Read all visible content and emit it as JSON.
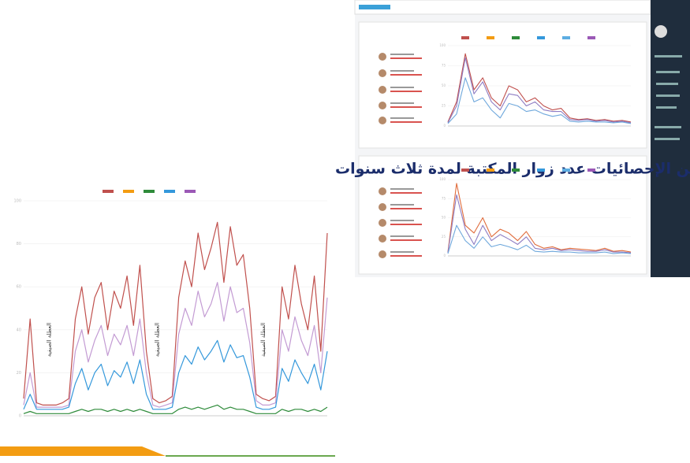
{
  "slide": {
    "title": "مثال عن الإحصائيات عدد زوار المكتبة لمدة ثلاث سنوات"
  },
  "chart_data": [
    {
      "type": "line",
      "ylim": [
        0,
        100
      ],
      "yticks": [
        0,
        20,
        40,
        60,
        80,
        100
      ],
      "grid": true,
      "legend_colors": [
        "#c0504d",
        "#f39c12",
        "#2e8b3a",
        "#3498db",
        "#9b59b6"
      ],
      "annotations": [
        "العطلة الصيفية",
        "العطلة الصيفية",
        "العطلة الصيفية"
      ],
      "series": [
        {
          "color": "#c0504d",
          "values": [
            8,
            45,
            6,
            5,
            5,
            5,
            6,
            8,
            45,
            60,
            38,
            55,
            62,
            40,
            58,
            50,
            65,
            42,
            70,
            30,
            8,
            6,
            7,
            9,
            55,
            72,
            60,
            85,
            68,
            78,
            90,
            62,
            88,
            70,
            75,
            50,
            10,
            8,
            7,
            9,
            60,
            45,
            70,
            52,
            40,
            65,
            30,
            85
          ]
        },
        {
          "color": "#c39bd3",
          "values": [
            5,
            20,
            4,
            4,
            4,
            4,
            4,
            5,
            30,
            40,
            25,
            35,
            42,
            28,
            38,
            33,
            42,
            28,
            45,
            20,
            5,
            4,
            5,
            6,
            38,
            50,
            42,
            58,
            46,
            52,
            62,
            44,
            60,
            48,
            50,
            34,
            7,
            5,
            5,
            6,
            40,
            30,
            46,
            35,
            28,
            42,
            20,
            55
          ]
        },
        {
          "color": "#3498db",
          "values": [
            3,
            10,
            3,
            3,
            3,
            3,
            3,
            4,
            15,
            22,
            12,
            20,
            24,
            14,
            21,
            18,
            25,
            15,
            26,
            10,
            3,
            3,
            3,
            4,
            20,
            28,
            24,
            32,
            26,
            30,
            35,
            25,
            33,
            27,
            28,
            18,
            4,
            3,
            3,
            4,
            22,
            16,
            26,
            20,
            15,
            24,
            12,
            30
          ]
        },
        {
          "color": "#2e8b3a",
          "values": [
            1,
            2,
            1,
            1,
            1,
            1,
            1,
            1,
            2,
            3,
            2,
            3,
            3,
            2,
            3,
            2,
            3,
            2,
            3,
            2,
            1,
            1,
            1,
            1,
            3,
            4,
            3,
            4,
            3,
            4,
            5,
            3,
            4,
            3,
            3,
            2,
            1,
            1,
            1,
            1,
            3,
            2,
            3,
            3,
            2,
            3,
            2,
            4
          ]
        }
      ]
    },
    {
      "type": "line",
      "ylim": [
        0,
        100
      ],
      "yticks": [
        0,
        25,
        50,
        75,
        100
      ],
      "grid": true,
      "legend_colors": [
        "#c0504d",
        "#f39c12",
        "#2e8b3a",
        "#3498db",
        "#5dade2",
        "#9b59b6"
      ],
      "series": [
        {
          "color": "#c0504d",
          "values": [
            5,
            30,
            90,
            45,
            60,
            35,
            25,
            50,
            45,
            30,
            35,
            25,
            20,
            22,
            10,
            8,
            9,
            7,
            8,
            6,
            7,
            5
          ]
        },
        {
          "color": "#8e7cc3",
          "values": [
            4,
            25,
            85,
            40,
            55,
            30,
            20,
            40,
            38,
            25,
            30,
            20,
            18,
            18,
            8,
            7,
            8,
            6,
            7,
            5,
            6,
            4
          ]
        },
        {
          "color": "#6fa8dc",
          "values": [
            3,
            15,
            60,
            30,
            35,
            20,
            10,
            28,
            25,
            18,
            20,
            15,
            12,
            14,
            6,
            5,
            6,
            5,
            5,
            4,
            5,
            3
          ]
        }
      ]
    },
    {
      "type": "line",
      "ylim": [
        0,
        100
      ],
      "yticks": [
        0,
        25,
        50,
        75,
        100
      ],
      "grid": true,
      "legend_colors": [
        "#c0504d",
        "#f39c12",
        "#2e8b3a",
        "#3498db",
        "#5dade2",
        "#9b59b6"
      ],
      "series": [
        {
          "color": "#e06c3c",
          "values": [
            5,
            95,
            40,
            30,
            50,
            25,
            35,
            30,
            20,
            32,
            15,
            10,
            12,
            8,
            10,
            9,
            8,
            7,
            10,
            6,
            7,
            5
          ]
        },
        {
          "color": "#8e7cc3",
          "values": [
            4,
            80,
            35,
            15,
            40,
            20,
            28,
            22,
            15,
            25,
            10,
            8,
            10,
            7,
            8,
            7,
            6,
            6,
            8,
            5,
            5,
            4
          ]
        },
        {
          "color": "#6fa8dc",
          "values": [
            3,
            40,
            20,
            10,
            25,
            12,
            15,
            12,
            8,
            14,
            6,
            5,
            6,
            5,
            5,
            4,
            4,
            4,
            5,
            3,
            4,
            3
          ]
        }
      ]
    }
  ]
}
